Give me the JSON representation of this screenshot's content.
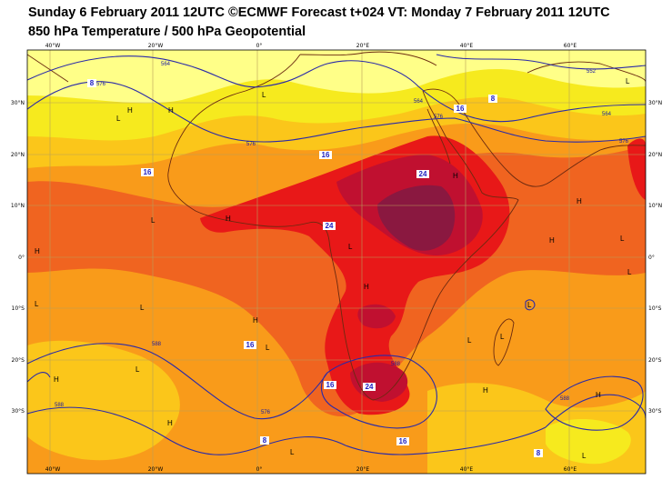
{
  "header": {
    "title_line1": "Sunday 6 February 2011 12UTC ©ECMWF Forecast t+024 VT: Monday 7 February 2011 12UTC",
    "title_line2": "850 hPa Temperature / 500 hPa Geopotential"
  },
  "axes": {
    "lon_labels": [
      "40°W",
      "20°W",
      "0°",
      "20°E",
      "40°E",
      "60°E"
    ],
    "lat_labels": [
      "30°N",
      "20°N",
      "10°N",
      "0°",
      "10°S",
      "20°S",
      "30°S"
    ]
  },
  "temperature_labels": [
    "8",
    "16",
    "16",
    "8",
    "16",
    "16",
    "24",
    "24",
    "16",
    "24",
    "16",
    "8",
    "8"
  ],
  "geopotential_labels": [
    "564",
    "576",
    "564",
    "576",
    "552",
    "564",
    "576",
    "576",
    "588",
    "588",
    "588",
    "588",
    "576"
  ],
  "pressure_centers": [
    "L",
    "H",
    "L",
    "H",
    "L",
    "L",
    "L",
    "H",
    "H",
    "H",
    "L",
    "H",
    "L",
    "H",
    "L",
    "H",
    "L",
    "L",
    "H",
    "L",
    "H",
    "L",
    "H",
    "L",
    "L",
    "H",
    "L",
    "H",
    "L"
  ],
  "colors": {
    "yellow_light": "#ffff88",
    "yellow": "#f6ea1e",
    "yellow_orange": "#fbc61a",
    "orange": "#f99b1a",
    "orange_red": "#f06420",
    "red": "#e81818",
    "dark_red": "#c01030",
    "maroon": "#8a1840",
    "contour": "#2a2aa8",
    "coast": "#6b2a10"
  }
}
